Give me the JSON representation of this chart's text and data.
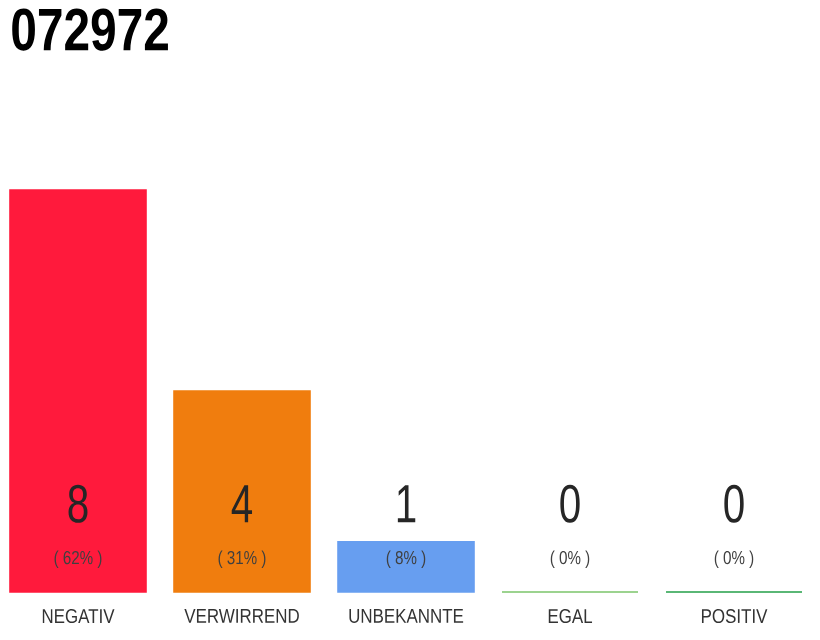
{
  "chart_data": {
    "type": "bar",
    "title": "072972",
    "categories": [
      "NEGATIV",
      "VERWIRREND",
      "UNBEKANNTE",
      "EGAL",
      "POSITIV"
    ],
    "values": [
      8,
      4,
      1,
      0,
      0
    ],
    "colors": [
      "#ff1a3c",
      "#f07d0e",
      "#679ef0",
      "#7cc56b",
      "#25a04a"
    ],
    "value_labels": [
      "8",
      "4",
      "1",
      "0",
      "0"
    ],
    "annotations": [
      "( 62% )",
      "( 31% )",
      "( 8% )",
      "( 0% )",
      "( 0% )"
    ]
  }
}
